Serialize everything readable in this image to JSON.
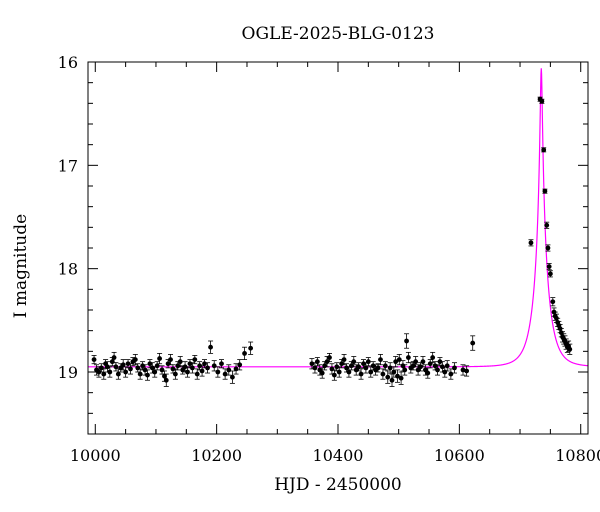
{
  "chart_data": {
    "type": "scatter",
    "title": "OGLE-2025-BLG-0123",
    "xlabel": "HJD - 2450000",
    "ylabel": "I magnitude",
    "xlim": [
      9988,
      10812
    ],
    "ylim": [
      16,
      19.6
    ],
    "y_inverted": true,
    "x_ticks": [
      10000,
      10200,
      10400,
      10600,
      10800
    ],
    "x_tick_labels": [
      "10000",
      "10200",
      "10400",
      "10600",
      "10800"
    ],
    "y_ticks": [
      16,
      17,
      18,
      19
    ],
    "y_tick_labels": [
      "16",
      "17",
      "18",
      "19"
    ],
    "grid": false,
    "colors": {
      "points": "#000000",
      "model": "#ff00ff"
    },
    "series": [
      {
        "kind": "observations_with_errorbars",
        "points": [
          [
            9998,
            18.88,
            0.04
          ],
          [
            10002,
            18.98,
            0.05
          ],
          [
            10006,
            19.0,
            0.05
          ],
          [
            10010,
            18.96,
            0.04
          ],
          [
            10014,
            19.02,
            0.05
          ],
          [
            10017,
            18.92,
            0.04
          ],
          [
            10020,
            18.95,
            0.05
          ],
          [
            10024,
            19.0,
            0.05
          ],
          [
            10028,
            18.9,
            0.04
          ],
          [
            10031,
            18.86,
            0.05
          ],
          [
            10034,
            18.95,
            0.04
          ],
          [
            10038,
            19.02,
            0.05
          ],
          [
            10042,
            18.96,
            0.04
          ],
          [
            10046,
            18.93,
            0.05
          ],
          [
            10050,
            19.0,
            0.05
          ],
          [
            10054,
            18.92,
            0.04
          ],
          [
            10058,
            18.97,
            0.05
          ],
          [
            10062,
            18.9,
            0.04
          ],
          [
            10066,
            18.88,
            0.05
          ],
          [
            10070,
            18.96,
            0.04
          ],
          [
            10074,
            19.02,
            0.05
          ],
          [
            10078,
            18.94,
            0.04
          ],
          [
            10082,
            18.98,
            0.05
          ],
          [
            10086,
            19.03,
            0.05
          ],
          [
            10090,
            18.92,
            0.04
          ],
          [
            10094,
            18.96,
            0.05
          ],
          [
            10098,
            19.0,
            0.05
          ],
          [
            10102,
            18.94,
            0.04
          ],
          [
            10106,
            18.87,
            0.05
          ],
          [
            10110,
            18.98,
            0.04
          ],
          [
            10114,
            19.04,
            0.05
          ],
          [
            10117,
            19.08,
            0.06
          ],
          [
            10120,
            18.92,
            0.04
          ],
          [
            10124,
            18.88,
            0.05
          ],
          [
            10128,
            18.97,
            0.04
          ],
          [
            10132,
            19.02,
            0.05
          ],
          [
            10136,
            18.94,
            0.04
          ],
          [
            10140,
            18.9,
            0.05
          ],
          [
            10144,
            18.98,
            0.04
          ],
          [
            10148,
            18.95,
            0.05
          ],
          [
            10152,
            19.0,
            0.05
          ],
          [
            10156,
            18.92,
            0.04
          ],
          [
            10160,
            18.96,
            0.05
          ],
          [
            10164,
            18.88,
            0.04
          ],
          [
            10168,
            19.02,
            0.05
          ],
          [
            10172,
            18.94,
            0.04
          ],
          [
            10176,
            18.99,
            0.05
          ],
          [
            10180,
            18.92,
            0.04
          ],
          [
            10185,
            18.96,
            0.05
          ],
          [
            10190,
            18.76,
            0.06
          ],
          [
            10196,
            18.94,
            0.05
          ],
          [
            10202,
            19.0,
            0.05
          ],
          [
            10208,
            18.92,
            0.04
          ],
          [
            10214,
            19.02,
            0.05
          ],
          [
            10220,
            18.98,
            0.05
          ],
          [
            10226,
            19.05,
            0.06
          ],
          [
            10232,
            18.97,
            0.05
          ],
          [
            10238,
            18.93,
            0.05
          ],
          [
            10246,
            18.82,
            0.06
          ],
          [
            10256,
            18.77,
            0.06
          ],
          [
            10357,
            18.92,
            0.05
          ],
          [
            10362,
            18.96,
            0.05
          ],
          [
            10366,
            18.9,
            0.04
          ],
          [
            10370,
            18.98,
            0.05
          ],
          [
            10374,
            19.01,
            0.05
          ],
          [
            10378,
            18.94,
            0.04
          ],
          [
            10382,
            18.9,
            0.05
          ],
          [
            10386,
            18.86,
            0.04
          ],
          [
            10390,
            18.97,
            0.05
          ],
          [
            10394,
            19.03,
            0.05
          ],
          [
            10398,
            18.95,
            0.04
          ],
          [
            10402,
            19.0,
            0.05
          ],
          [
            10406,
            18.92,
            0.04
          ],
          [
            10410,
            18.88,
            0.05
          ],
          [
            10414,
            18.96,
            0.04
          ],
          [
            10418,
            19.0,
            0.05
          ],
          [
            10422,
            18.94,
            0.04
          ],
          [
            10426,
            18.9,
            0.05
          ],
          [
            10430,
            18.98,
            0.05
          ],
          [
            10434,
            18.95,
            0.04
          ],
          [
            10438,
            19.02,
            0.05
          ],
          [
            10442,
            18.92,
            0.04
          ],
          [
            10446,
            18.96,
            0.05
          ],
          [
            10450,
            18.9,
            0.04
          ],
          [
            10454,
            19.0,
            0.05
          ],
          [
            10458,
            18.94,
            0.04
          ],
          [
            10462,
            18.98,
            0.05
          ],
          [
            10466,
            18.96,
            0.04
          ],
          [
            10470,
            18.88,
            0.05
          ],
          [
            10474,
            19.02,
            0.05
          ],
          [
            10478,
            18.94,
            0.04
          ],
          [
            10482,
            19.05,
            0.06
          ],
          [
            10486,
            18.96,
            0.05
          ],
          [
            10489,
            19.08,
            0.06
          ],
          [
            10492,
            19.0,
            0.05
          ],
          [
            10495,
            18.9,
            0.05
          ],
          [
            10498,
            19.04,
            0.06
          ],
          [
            10501,
            18.88,
            0.05
          ],
          [
            10504,
            19.06,
            0.06
          ],
          [
            10507,
            18.94,
            0.05
          ],
          [
            10510,
            18.98,
            0.05
          ],
          [
            10513,
            18.7,
            0.07
          ],
          [
            10516,
            18.86,
            0.05
          ],
          [
            10520,
            18.96,
            0.05
          ],
          [
            10524,
            18.94,
            0.04
          ],
          [
            10528,
            18.9,
            0.05
          ],
          [
            10532,
            18.98,
            0.05
          ],
          [
            10536,
            18.95,
            0.04
          ],
          [
            10540,
            18.9,
            0.05
          ],
          [
            10544,
            18.98,
            0.05
          ],
          [
            10548,
            19.01,
            0.05
          ],
          [
            10552,
            18.92,
            0.04
          ],
          [
            10556,
            18.86,
            0.05
          ],
          [
            10560,
            18.94,
            0.04
          ],
          [
            10564,
            18.98,
            0.05
          ],
          [
            10568,
            18.9,
            0.04
          ],
          [
            10572,
            18.95,
            0.05
          ],
          [
            10576,
            19.0,
            0.05
          ],
          [
            10580,
            18.94,
            0.05
          ],
          [
            10586,
            19.02,
            0.05
          ],
          [
            10592,
            18.96,
            0.05
          ],
          [
            10606,
            18.98,
            0.05
          ],
          [
            10612,
            18.99,
            0.05
          ],
          [
            10622,
            18.72,
            0.07
          ],
          [
            10718,
            17.75,
            0.03
          ],
          [
            10733,
            16.36,
            0.02
          ],
          [
            10736,
            16.38,
            0.02
          ],
          [
            10739,
            16.85,
            0.02
          ],
          [
            10741,
            17.25,
            0.02
          ],
          [
            10744,
            17.58,
            0.03
          ],
          [
            10746,
            17.8,
            0.03
          ],
          [
            10748,
            17.98,
            0.03
          ],
          [
            10750,
            18.05,
            0.03
          ],
          [
            10754,
            18.32,
            0.04
          ],
          [
            10756,
            18.42,
            0.04
          ],
          [
            10758,
            18.46,
            0.04
          ],
          [
            10760,
            18.48,
            0.04
          ],
          [
            10762,
            18.52,
            0.04
          ],
          [
            10764,
            18.55,
            0.04
          ],
          [
            10766,
            18.58,
            0.04
          ],
          [
            10768,
            18.62,
            0.04
          ],
          [
            10770,
            18.66,
            0.05
          ],
          [
            10772,
            18.68,
            0.05
          ],
          [
            10774,
            18.7,
            0.05
          ],
          [
            10776,
            18.73,
            0.05
          ],
          [
            10778,
            18.76,
            0.05
          ],
          [
            10780,
            18.75,
            0.05
          ],
          [
            10782,
            18.78,
            0.05
          ]
        ]
      },
      {
        "kind": "model_curve",
        "base_magnitude": 18.95,
        "t0": 10735,
        "u0": 0.07,
        "tE": 22,
        "x_range": [
          9988,
          10812
        ]
      }
    ]
  }
}
